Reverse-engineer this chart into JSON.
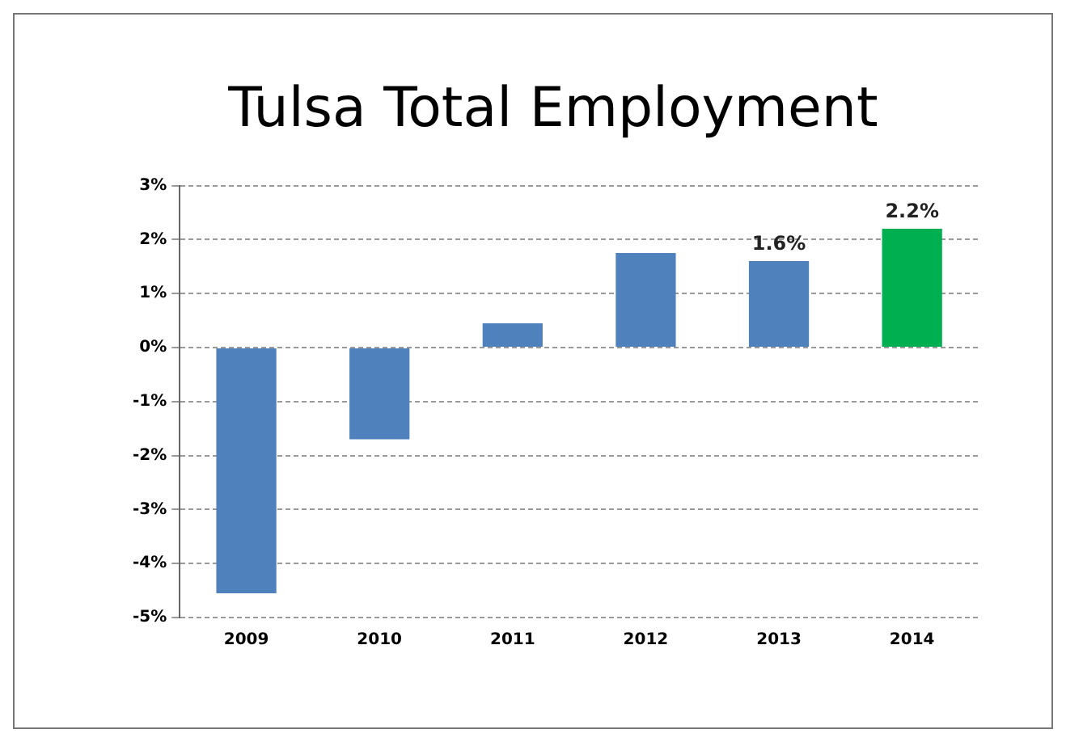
{
  "chart_data": {
    "type": "bar",
    "title": "Tulsa Total Employment",
    "categories": [
      "2009",
      "2010",
      "2011",
      "2012",
      "2013",
      "2014"
    ],
    "values": [
      -4.55,
      -1.7,
      0.45,
      1.75,
      1.6,
      2.2
    ],
    "colors": [
      "#4f81bd",
      "#4f81bd",
      "#4f81bd",
      "#4f81bd",
      "#4f81bd",
      "#00b050"
    ],
    "value_labels": [
      null,
      null,
      null,
      null,
      "1.6%",
      "2.2%"
    ],
    "ylim": [
      -5,
      3
    ],
    "yticks": [
      {
        "value": -5,
        "label": "-5%"
      },
      {
        "value": -4,
        "label": "-4%"
      },
      {
        "value": -3,
        "label": "-3%"
      },
      {
        "value": -2,
        "label": "-2%"
      },
      {
        "value": -1,
        "label": "-1%"
      },
      {
        "value": 0,
        "label": "0%"
      },
      {
        "value": 1,
        "label": "1%"
      },
      {
        "value": 2,
        "label": "2%"
      },
      {
        "value": 3,
        "label": "3%"
      }
    ],
    "grid": "y"
  }
}
